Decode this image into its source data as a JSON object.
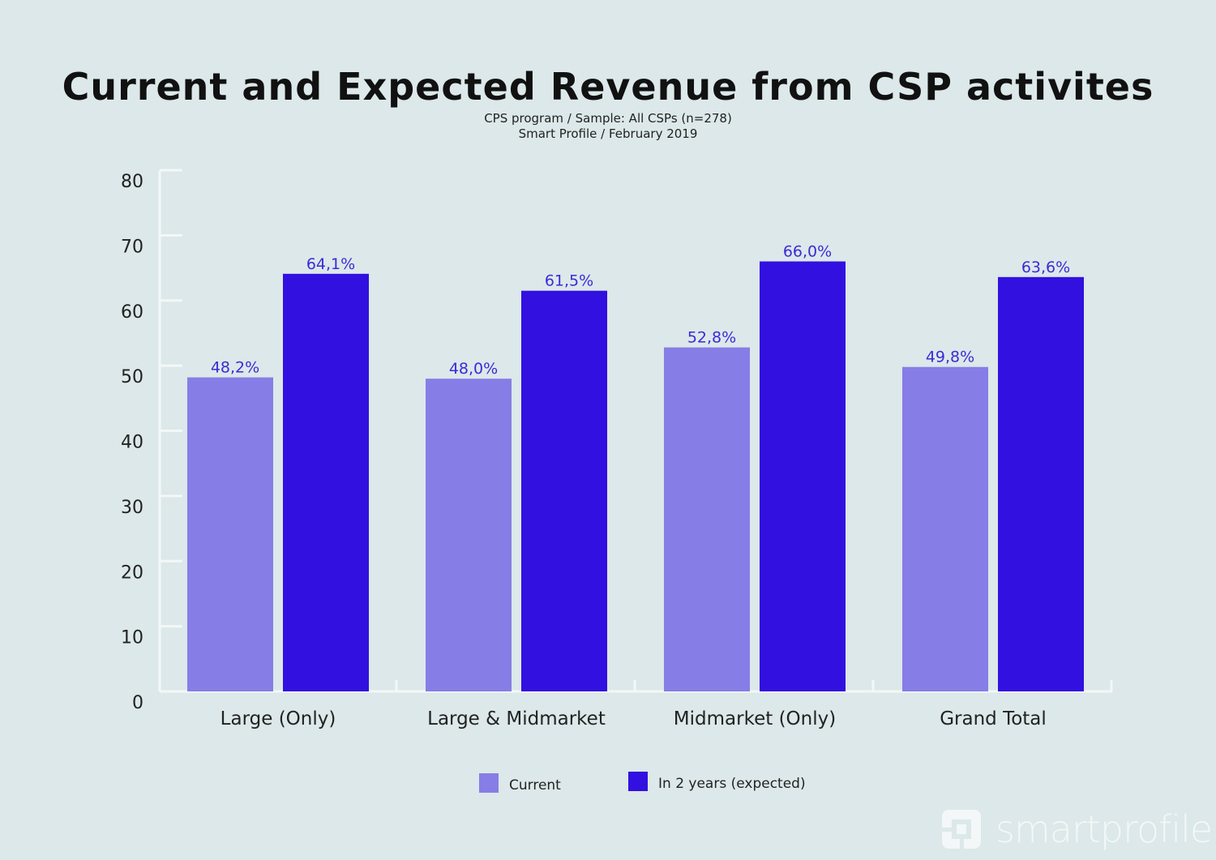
{
  "chart_data": {
    "type": "bar",
    "title": "Current and Expected Revenue from CSP activites",
    "subtitle": [
      "CPS program / Sample: All CSPs (n=278)",
      "Smart Profile / February 2019"
    ],
    "xlabel": "",
    "ylabel": "",
    "ylim": [
      0,
      80
    ],
    "yticks": [
      "0",
      "10",
      "20",
      "30",
      "40",
      "50",
      "60",
      "70",
      "80"
    ],
    "categories": [
      "Large (Only)",
      "Large & Midmarket",
      "Midmarket (Only)",
      "Grand Total"
    ],
    "series": [
      {
        "name": "Current",
        "color": "#877de6",
        "values": [
          48.2,
          48.0,
          52.8,
          49.8
        ],
        "labels": [
          "48,2%",
          "48,0%",
          "52,8%",
          "49,8%"
        ]
      },
      {
        "name": "In 2 years (expected)",
        "color": "#3210e0",
        "values": [
          64.1,
          61.5,
          66.0,
          63.6
        ],
        "labels": [
          "64,1%",
          "61,5%",
          "66,0%",
          "63,6%"
        ]
      }
    ],
    "grid": false,
    "legend": "bottom",
    "label_color": "#3a2bd8",
    "axis_color": "#f4f7f7"
  },
  "logo": {
    "text": "smartprofile"
  }
}
